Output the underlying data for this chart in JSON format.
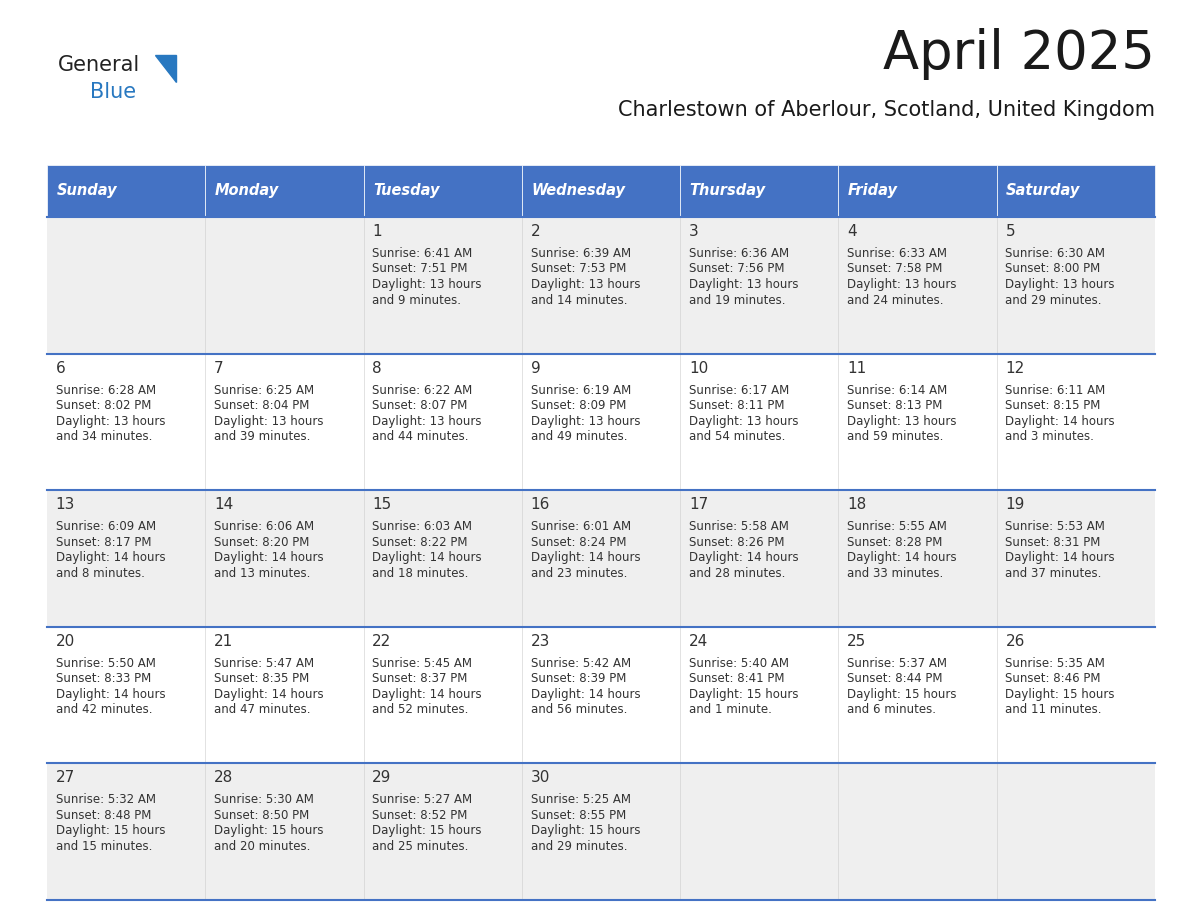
{
  "title": "April 2025",
  "subtitle": "Charlestown of Aberlour, Scotland, United Kingdom",
  "header_bg_color": "#4472C4",
  "header_text_color": "#FFFFFF",
  "header_font_size": 10.5,
  "day_names": [
    "Sunday",
    "Monday",
    "Tuesday",
    "Wednesday",
    "Thursday",
    "Friday",
    "Saturday"
  ],
  "title_font_size": 38,
  "subtitle_font_size": 15,
  "cell_text_color": "#333333",
  "day_num_font_size": 10,
  "info_font_size": 8.5,
  "logo_text_general_color": "#222222",
  "logo_text_blue_color": "#2878C0",
  "grid_line_color": "#4472C4",
  "alt_row_bg": "#EFEFEF",
  "white_bg": "#FFFFFF",
  "weeks": [
    {
      "row": 0,
      "days": [
        {
          "day": null,
          "col": 0
        },
        {
          "day": null,
          "col": 1
        },
        {
          "day": 1,
          "col": 2,
          "lines": [
            "Sunrise: 6:41 AM",
            "Sunset: 7:51 PM",
            "Daylight: 13 hours",
            "and 9 minutes."
          ]
        },
        {
          "day": 2,
          "col": 3,
          "lines": [
            "Sunrise: 6:39 AM",
            "Sunset: 7:53 PM",
            "Daylight: 13 hours",
            "and 14 minutes."
          ]
        },
        {
          "day": 3,
          "col": 4,
          "lines": [
            "Sunrise: 6:36 AM",
            "Sunset: 7:56 PM",
            "Daylight: 13 hours",
            "and 19 minutes."
          ]
        },
        {
          "day": 4,
          "col": 5,
          "lines": [
            "Sunrise: 6:33 AM",
            "Sunset: 7:58 PM",
            "Daylight: 13 hours",
            "and 24 minutes."
          ]
        },
        {
          "day": 5,
          "col": 6,
          "lines": [
            "Sunrise: 6:30 AM",
            "Sunset: 8:00 PM",
            "Daylight: 13 hours",
            "and 29 minutes."
          ]
        }
      ]
    },
    {
      "row": 1,
      "days": [
        {
          "day": 6,
          "col": 0,
          "lines": [
            "Sunrise: 6:28 AM",
            "Sunset: 8:02 PM",
            "Daylight: 13 hours",
            "and 34 minutes."
          ]
        },
        {
          "day": 7,
          "col": 1,
          "lines": [
            "Sunrise: 6:25 AM",
            "Sunset: 8:04 PM",
            "Daylight: 13 hours",
            "and 39 minutes."
          ]
        },
        {
          "day": 8,
          "col": 2,
          "lines": [
            "Sunrise: 6:22 AM",
            "Sunset: 8:07 PM",
            "Daylight: 13 hours",
            "and 44 minutes."
          ]
        },
        {
          "day": 9,
          "col": 3,
          "lines": [
            "Sunrise: 6:19 AM",
            "Sunset: 8:09 PM",
            "Daylight: 13 hours",
            "and 49 minutes."
          ]
        },
        {
          "day": 10,
          "col": 4,
          "lines": [
            "Sunrise: 6:17 AM",
            "Sunset: 8:11 PM",
            "Daylight: 13 hours",
            "and 54 minutes."
          ]
        },
        {
          "day": 11,
          "col": 5,
          "lines": [
            "Sunrise: 6:14 AM",
            "Sunset: 8:13 PM",
            "Daylight: 13 hours",
            "and 59 minutes."
          ]
        },
        {
          "day": 12,
          "col": 6,
          "lines": [
            "Sunrise: 6:11 AM",
            "Sunset: 8:15 PM",
            "Daylight: 14 hours",
            "and 3 minutes."
          ]
        }
      ]
    },
    {
      "row": 2,
      "days": [
        {
          "day": 13,
          "col": 0,
          "lines": [
            "Sunrise: 6:09 AM",
            "Sunset: 8:17 PM",
            "Daylight: 14 hours",
            "and 8 minutes."
          ]
        },
        {
          "day": 14,
          "col": 1,
          "lines": [
            "Sunrise: 6:06 AM",
            "Sunset: 8:20 PM",
            "Daylight: 14 hours",
            "and 13 minutes."
          ]
        },
        {
          "day": 15,
          "col": 2,
          "lines": [
            "Sunrise: 6:03 AM",
            "Sunset: 8:22 PM",
            "Daylight: 14 hours",
            "and 18 minutes."
          ]
        },
        {
          "day": 16,
          "col": 3,
          "lines": [
            "Sunrise: 6:01 AM",
            "Sunset: 8:24 PM",
            "Daylight: 14 hours",
            "and 23 minutes."
          ]
        },
        {
          "day": 17,
          "col": 4,
          "lines": [
            "Sunrise: 5:58 AM",
            "Sunset: 8:26 PM",
            "Daylight: 14 hours",
            "and 28 minutes."
          ]
        },
        {
          "day": 18,
          "col": 5,
          "lines": [
            "Sunrise: 5:55 AM",
            "Sunset: 8:28 PM",
            "Daylight: 14 hours",
            "and 33 minutes."
          ]
        },
        {
          "day": 19,
          "col": 6,
          "lines": [
            "Sunrise: 5:53 AM",
            "Sunset: 8:31 PM",
            "Daylight: 14 hours",
            "and 37 minutes."
          ]
        }
      ]
    },
    {
      "row": 3,
      "days": [
        {
          "day": 20,
          "col": 0,
          "lines": [
            "Sunrise: 5:50 AM",
            "Sunset: 8:33 PM",
            "Daylight: 14 hours",
            "and 42 minutes."
          ]
        },
        {
          "day": 21,
          "col": 1,
          "lines": [
            "Sunrise: 5:47 AM",
            "Sunset: 8:35 PM",
            "Daylight: 14 hours",
            "and 47 minutes."
          ]
        },
        {
          "day": 22,
          "col": 2,
          "lines": [
            "Sunrise: 5:45 AM",
            "Sunset: 8:37 PM",
            "Daylight: 14 hours",
            "and 52 minutes."
          ]
        },
        {
          "day": 23,
          "col": 3,
          "lines": [
            "Sunrise: 5:42 AM",
            "Sunset: 8:39 PM",
            "Daylight: 14 hours",
            "and 56 minutes."
          ]
        },
        {
          "day": 24,
          "col": 4,
          "lines": [
            "Sunrise: 5:40 AM",
            "Sunset: 8:41 PM",
            "Daylight: 15 hours",
            "and 1 minute."
          ]
        },
        {
          "day": 25,
          "col": 5,
          "lines": [
            "Sunrise: 5:37 AM",
            "Sunset: 8:44 PM",
            "Daylight: 15 hours",
            "and 6 minutes."
          ]
        },
        {
          "day": 26,
          "col": 6,
          "lines": [
            "Sunrise: 5:35 AM",
            "Sunset: 8:46 PM",
            "Daylight: 15 hours",
            "and 11 minutes."
          ]
        }
      ]
    },
    {
      "row": 4,
      "days": [
        {
          "day": 27,
          "col": 0,
          "lines": [
            "Sunrise: 5:32 AM",
            "Sunset: 8:48 PM",
            "Daylight: 15 hours",
            "and 15 minutes."
          ]
        },
        {
          "day": 28,
          "col": 1,
          "lines": [
            "Sunrise: 5:30 AM",
            "Sunset: 8:50 PM",
            "Daylight: 15 hours",
            "and 20 minutes."
          ]
        },
        {
          "day": 29,
          "col": 2,
          "lines": [
            "Sunrise: 5:27 AM",
            "Sunset: 8:52 PM",
            "Daylight: 15 hours",
            "and 25 minutes."
          ]
        },
        {
          "day": 30,
          "col": 3,
          "lines": [
            "Sunrise: 5:25 AM",
            "Sunset: 8:55 PM",
            "Daylight: 15 hours",
            "and 29 minutes."
          ]
        },
        {
          "day": null,
          "col": 4
        },
        {
          "day": null,
          "col": 5
        },
        {
          "day": null,
          "col": 6
        }
      ]
    }
  ]
}
